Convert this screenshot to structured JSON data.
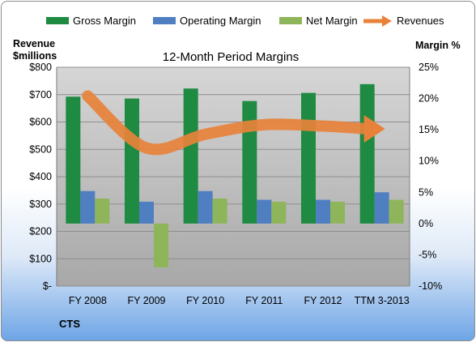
{
  "chart_data": {
    "type": "bar",
    "title": "12-Month Period Margins",
    "categories": [
      "FY 2008",
      "FY 2009",
      "FY 2010",
      "FY 2011",
      "FY 2012",
      "TTM 3-2013"
    ],
    "y_left_label_line1": "Revenue",
    "y_left_label_line2": "$millions",
    "y_right_label": "Margin %",
    "y_left_ticks": [
      "$-",
      "$100",
      "$200",
      "$300",
      "$400",
      "$500",
      "$600",
      "$700",
      "$800"
    ],
    "y_right_ticks": [
      "-10%",
      "-5%",
      "0%",
      "5%",
      "10%",
      "15%",
      "20%",
      "25%"
    ],
    "ylim_left": [
      0,
      800
    ],
    "ylim_right": [
      -10,
      25
    ],
    "legend_position": "top",
    "grid": true,
    "series": [
      {
        "name": "Gross Margin",
        "type": "bar",
        "axis": "right",
        "color": "#1e8a42",
        "values": [
          20.3,
          20.0,
          21.6,
          19.6,
          20.9,
          22.3
        ]
      },
      {
        "name": "Operating Margin",
        "type": "bar",
        "axis": "right",
        "color": "#4f7fc1",
        "values": [
          5.2,
          3.5,
          5.2,
          3.8,
          3.8,
          5.0
        ]
      },
      {
        "name": "Net Margin",
        "type": "bar",
        "axis": "right",
        "color": "#8fb55a",
        "values": [
          4.0,
          -7.0,
          4.0,
          3.5,
          3.5,
          3.8
        ]
      },
      {
        "name": "Revenues",
        "type": "line",
        "axis": "left",
        "color": "#e8823a",
        "values": [
          695,
          505,
          555,
          590,
          585,
          575
        ]
      }
    ],
    "footer_label": "CTS"
  }
}
